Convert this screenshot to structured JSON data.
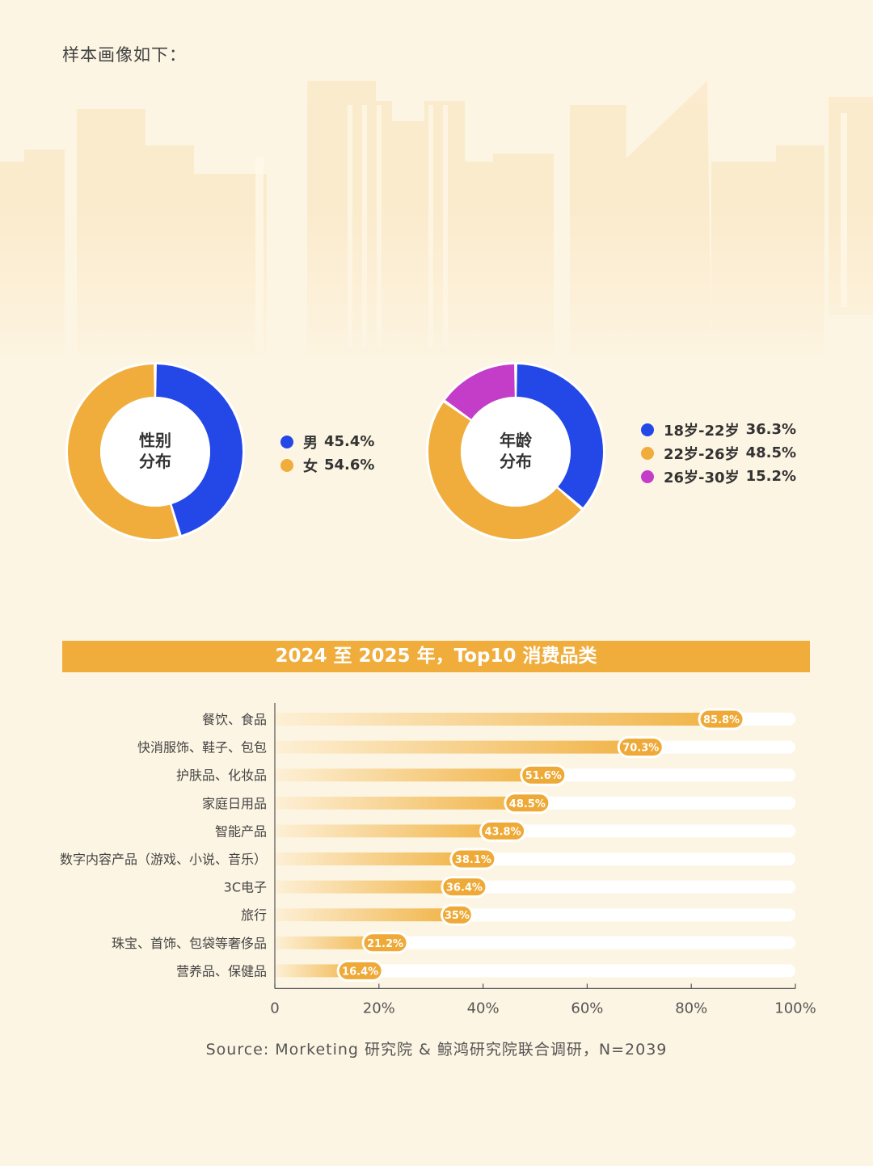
{
  "page": {
    "intro": "样本画像如下：",
    "source": "Source: Morketing 研究院 & 鲸鸿研究院联合调研，N=2039"
  },
  "colors": {
    "blue": "#2447e8",
    "orange": "#f0ad3c",
    "magenta": "#c43dc8",
    "background": "#fdf5e3"
  },
  "chart_data": [
    {
      "type": "pie",
      "title": "性别分布",
      "title_lines": [
        "性别",
        "分布"
      ],
      "slices": [
        {
          "label": "男",
          "value": 45.4,
          "value_label": "45.4%",
          "color": "#2447e8"
        },
        {
          "label": "女",
          "value": 54.6,
          "value_label": "54.6%",
          "color": "#f0ad3c"
        }
      ]
    },
    {
      "type": "pie",
      "title": "年龄分布",
      "title_lines": [
        "年龄",
        "分布"
      ],
      "slices": [
        {
          "label": "18岁-22岁",
          "value": 36.3,
          "value_label": "36.3%",
          "color": "#2447e8"
        },
        {
          "label": "22岁-26岁",
          "value": 48.5,
          "value_label": "48.5%",
          "color": "#f0ad3c"
        },
        {
          "label": "26岁-30岁",
          "value": 15.2,
          "value_label": "15.2%",
          "color": "#c43dc8"
        }
      ]
    },
    {
      "type": "bar",
      "orientation": "horizontal",
      "title": "2024 至 2025 年，Top10 消费品类",
      "categories": [
        "餐饮、食品",
        "快消服饰、鞋子、包包",
        "护肤品、化妆品",
        "家庭日用品",
        "智能产品",
        "数字内容产品（游戏、小说、音乐）",
        "3C电子",
        "旅行",
        "珠宝、首饰、包袋等奢侈品",
        "营养品、保健品"
      ],
      "values": [
        85.8,
        70.3,
        51.6,
        48.5,
        43.8,
        38.1,
        36.4,
        35,
        21.2,
        16.4
      ],
      "value_labels": [
        "85.8%",
        "70.3%",
        "51.6%",
        "48.5%",
        "43.8%",
        "38.1%",
        "36.4%",
        "35%",
        "21.2%",
        "16.4%"
      ],
      "xlim": [
        0,
        100
      ],
      "xticks": [
        0,
        20,
        40,
        60,
        80,
        100
      ],
      "xtick_labels": [
        "0",
        "20%",
        "40%",
        "60%",
        "80%",
        "100%"
      ]
    }
  ]
}
